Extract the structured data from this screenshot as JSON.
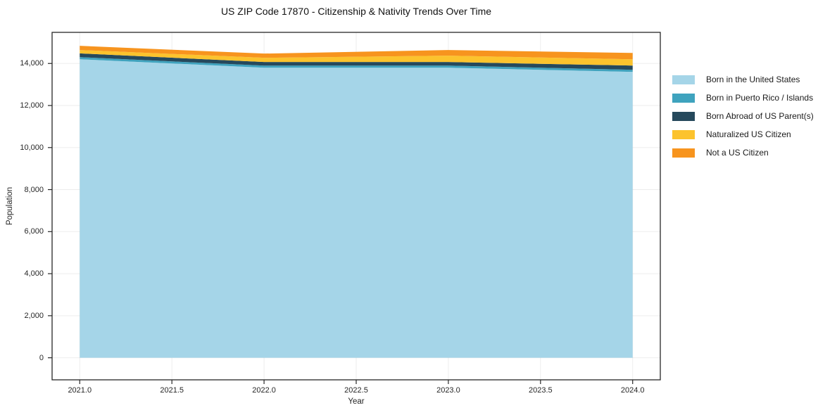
{
  "title": "US ZIP Code 17870 - Citizenship & Nativity Trends Over Time",
  "chart_data": {
    "type": "area",
    "stacked": true,
    "title": "US ZIP Code 17870 - Citizenship & Nativity Trends Over Time",
    "xlabel": "Year",
    "ylabel": "Population",
    "x": [
      2021,
      2022,
      2023,
      2024
    ],
    "series": [
      {
        "name": "Born in the United States",
        "color": "#A5D5E8",
        "values": [
          14200,
          13800,
          13800,
          13600
        ]
      },
      {
        "name": "Born in Puerto Rico / Islands",
        "color": "#3FA3BE",
        "values": [
          100,
          100,
          100,
          100
        ]
      },
      {
        "name": "Born Abroad of US Parent(s)",
        "color": "#26495C",
        "values": [
          180,
          170,
          170,
          200
        ]
      },
      {
        "name": "Naturalized US Citizen",
        "color": "#FCC32D",
        "values": [
          160,
          200,
          300,
          300
        ]
      },
      {
        "name": "Not a US Citizen",
        "color": "#F7941E",
        "values": [
          200,
          200,
          270,
          300
        ]
      }
    ],
    "x_ticks": [
      {
        "value": 2021.0,
        "label": "2021.0"
      },
      {
        "value": 2021.5,
        "label": "2021.5"
      },
      {
        "value": 2022.0,
        "label": "2022.0"
      },
      {
        "value": 2022.5,
        "label": "2022.5"
      },
      {
        "value": 2023.0,
        "label": "2023.0"
      },
      {
        "value": 2023.5,
        "label": "2023.5"
      },
      {
        "value": 2024.0,
        "label": "2024.0"
      }
    ],
    "y_ticks": [
      {
        "value": 0,
        "label": "0"
      },
      {
        "value": 2000,
        "label": "2,000"
      },
      {
        "value": 4000,
        "label": "4,000"
      },
      {
        "value": 6000,
        "label": "6,000"
      },
      {
        "value": 8000,
        "label": "8,000"
      },
      {
        "value": 10000,
        "label": "10,000"
      },
      {
        "value": 12000,
        "label": "12,000"
      },
      {
        "value": 14000,
        "label": "14,000"
      }
    ],
    "xlim": [
      2020.85,
      2024.15
    ],
    "ylim": [
      -1050,
      15480
    ],
    "grid": true,
    "legend_position": "right-outside"
  }
}
